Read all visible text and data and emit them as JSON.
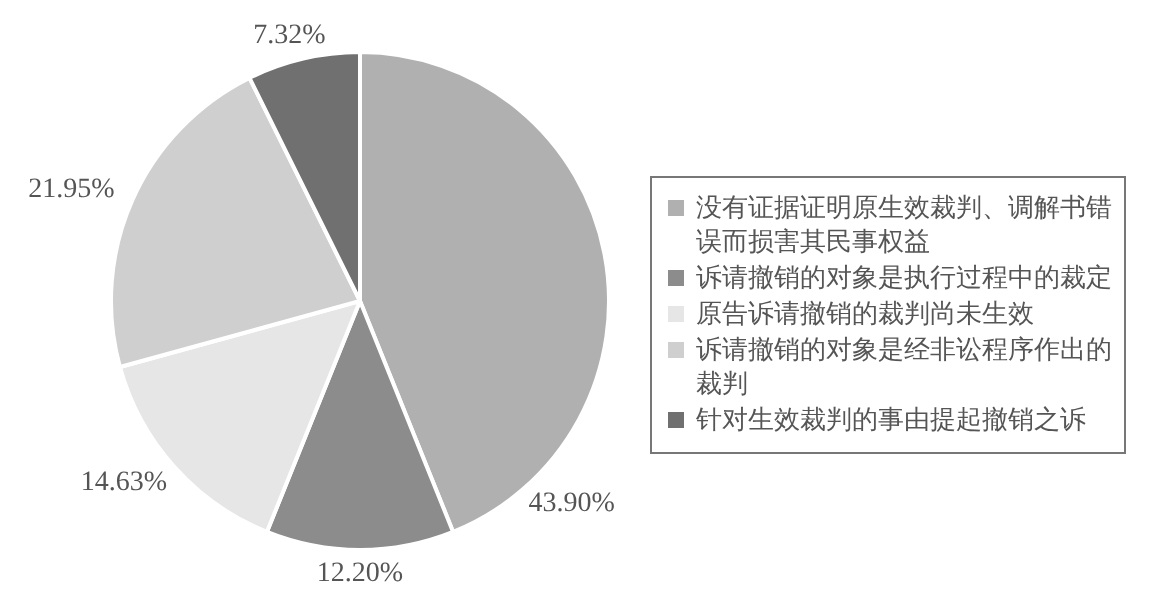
{
  "chart_data": {
    "type": "pie",
    "categories": [
      "没有证据证明原生效裁判、调解书错误而损害其民事权益",
      "诉请撤销的对象是执行过程中的裁定",
      "原告诉请撤销的裁判尚未生效",
      "诉请撤销的对象是经非讼程序作出的裁判",
      "针对生效裁判的事由提起撤销之诉"
    ],
    "values": [
      43.9,
      12.2,
      14.63,
      21.95,
      7.32
    ],
    "value_labels": [
      "43.90%",
      "12.20%",
      "14.63%",
      "21.95%",
      "7.32%"
    ],
    "colors": [
      "#b0b0b0",
      "#8c8c8c",
      "#e6e6e6",
      "#cfcfcf",
      "#707070"
    ],
    "legend": "right"
  }
}
